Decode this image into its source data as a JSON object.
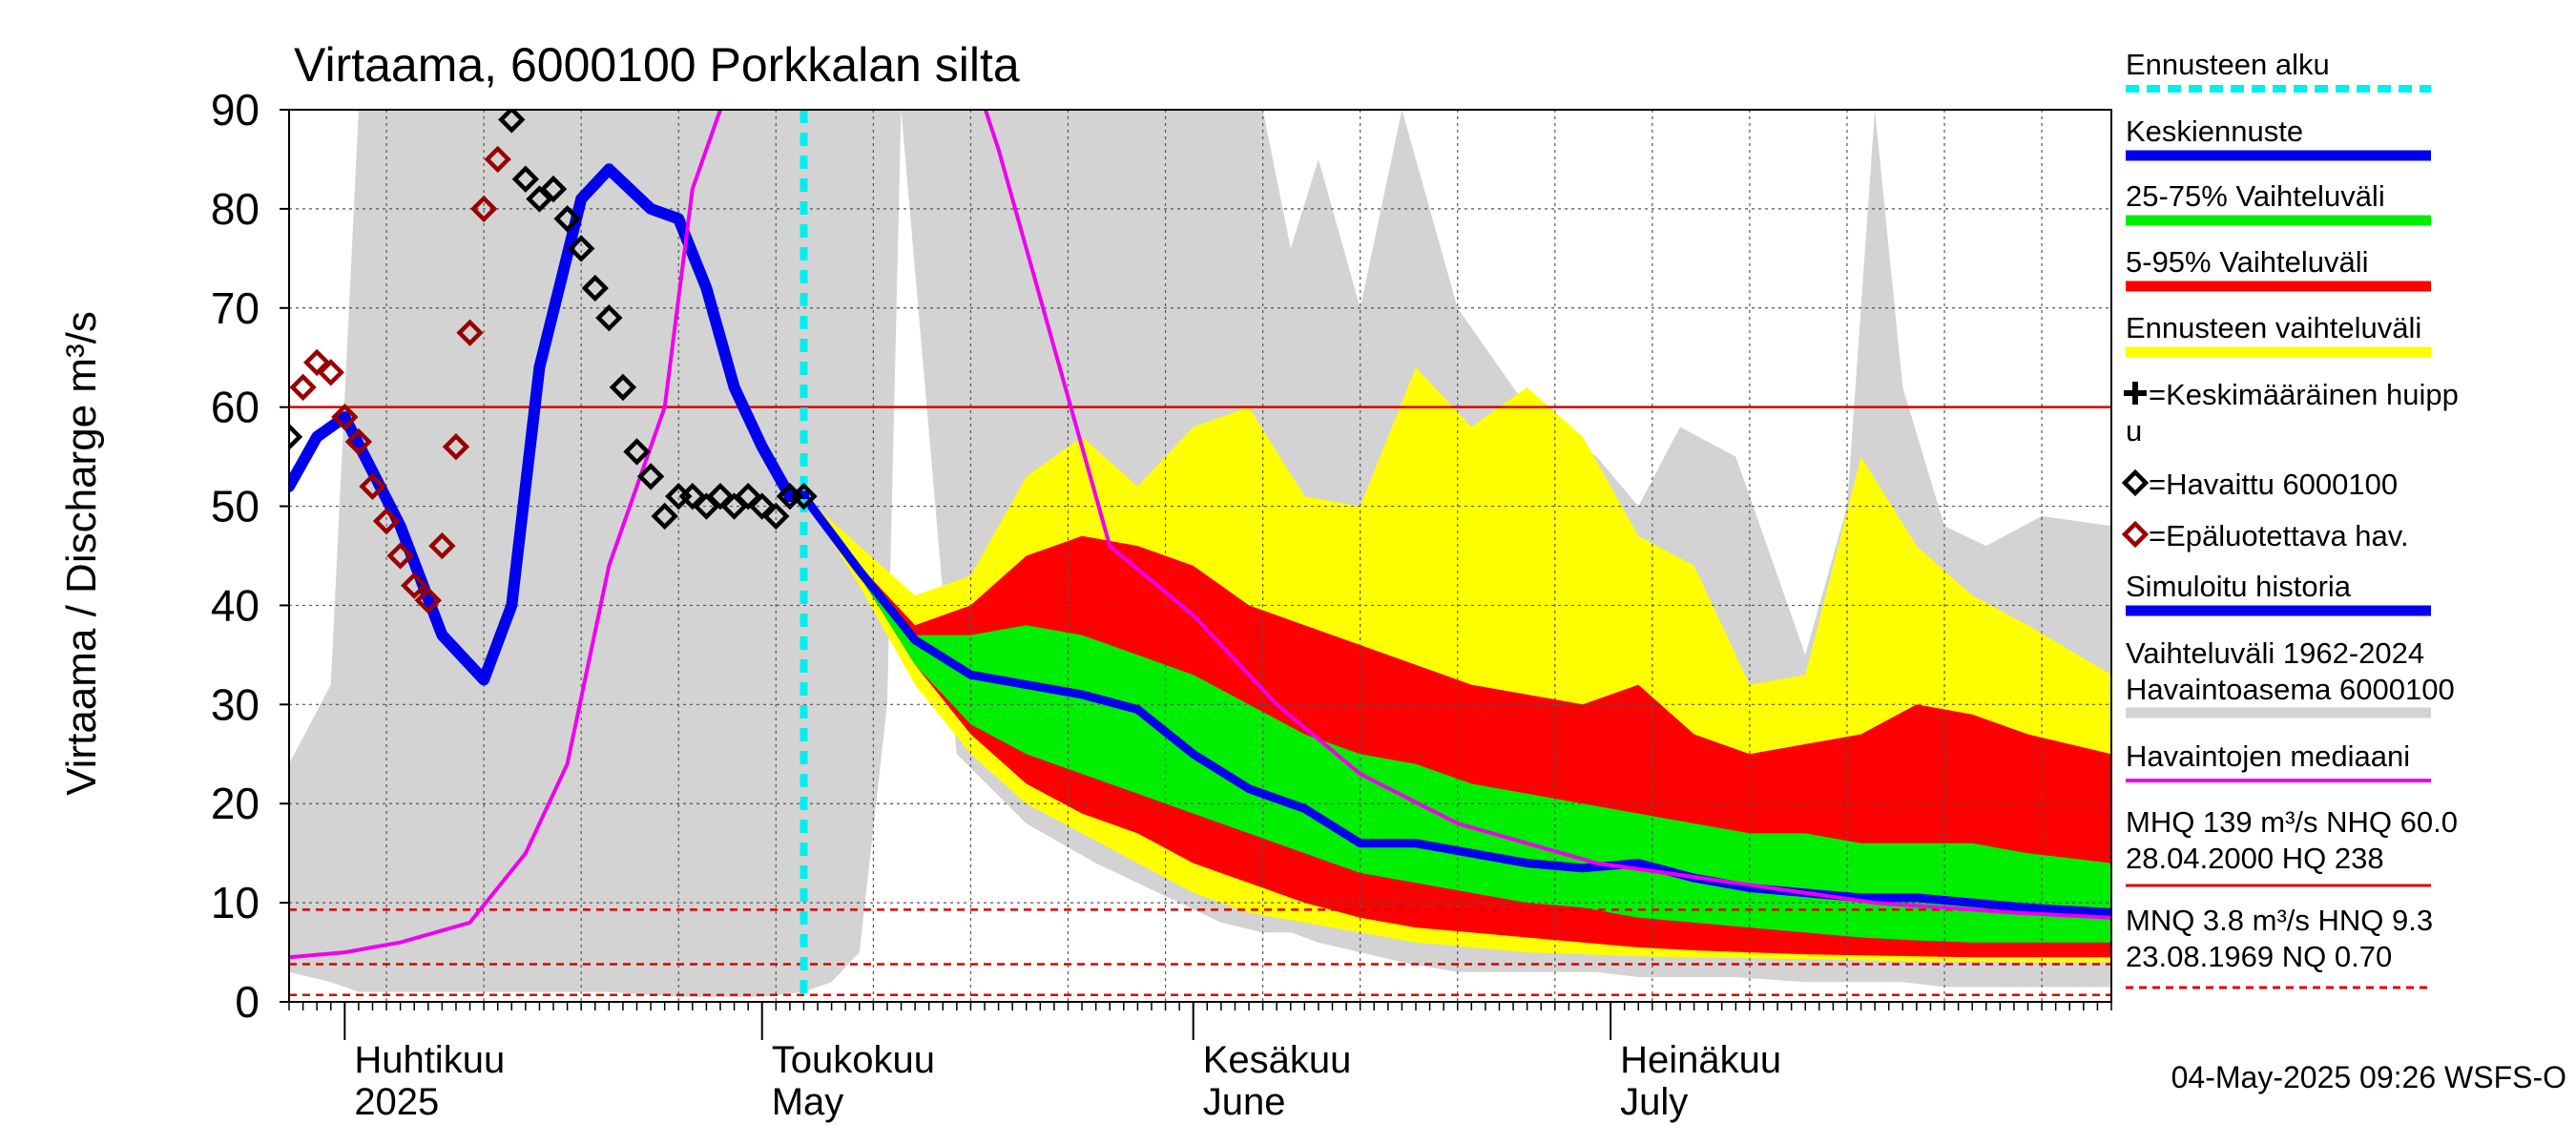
{
  "chart_data": {
    "type": "area",
    "title": "Virtaama, 6000100 Porkkalan silta",
    "ylabel": "Virtaama / Discharge   m³/s",
    "ylim": [
      0,
      90
    ],
    "yticks": [
      0,
      10,
      20,
      30,
      40,
      50,
      60,
      70,
      80,
      90
    ],
    "xlim": [
      "2025-03-28",
      "2025-08-06"
    ],
    "forecast_start": "2025-05-04",
    "months": [
      {
        "date": "2025-04-01",
        "fi": "Huhtikuu",
        "en": "2025"
      },
      {
        "date": "2025-05-01",
        "fi": "Toukokuu",
        "en": "May"
      },
      {
        "date": "2025-06-01",
        "fi": "Kesäkuu",
        "en": "June"
      },
      {
        "date": "2025-07-01",
        "fi": "Heinäkuu",
        "en": "July"
      }
    ],
    "reference_lines": [
      {
        "name": "NHQ",
        "value": 60.0,
        "color": "#e00000",
        "style": "solid"
      },
      {
        "name": "HNQ",
        "value": 9.3,
        "color": "#e00000",
        "style": "dashed"
      },
      {
        "name": "MNQ",
        "value": 3.8,
        "color": "#e00000",
        "style": "dashed"
      },
      {
        "name": "NQ",
        "value": 0.7,
        "color": "#e00000",
        "style": "dashed"
      }
    ],
    "history_range": {
      "x": [
        "2025-03-28",
        "2025-03-31",
        "2025-04-02",
        "2025-04-05",
        "2025-04-08",
        "2025-04-15",
        "2025-04-20",
        "2025-04-25",
        "2025-04-28",
        "2025-05-01",
        "2025-05-04",
        "2025-05-06",
        "2025-05-08",
        "2025-05-10",
        "2025-05-11",
        "2025-05-15",
        "2025-05-20",
        "2025-05-25",
        "2025-05-31",
        "2025-06-03",
        "2025-06-06",
        "2025-06-08",
        "2025-06-10",
        "2025-06-13",
        "2025-06-16",
        "2025-06-20",
        "2025-06-25",
        "2025-06-30",
        "2025-07-03",
        "2025-07-06",
        "2025-07-10",
        "2025-07-15",
        "2025-07-18",
        "2025-07-20",
        "2025-07-22",
        "2025-07-25",
        "2025-07-28",
        "2025-08-01",
        "2025-08-06"
      ],
      "upper": [
        24,
        32,
        90,
        90,
        90,
        90,
        90,
        90,
        90,
        90,
        90,
        90,
        90,
        90,
        90,
        90,
        90,
        90,
        90,
        90,
        90,
        76,
        85,
        70,
        90,
        70,
        60,
        55,
        50,
        58,
        55,
        35,
        50,
        90,
        62,
        48,
        46,
        49,
        48
      ],
      "lower": [
        3,
        2,
        1,
        1,
        1,
        1,
        1,
        0.5,
        0.5,
        0.5,
        1,
        2,
        5,
        30,
        90,
        25,
        18,
        14,
        10,
        8,
        7,
        7,
        6,
        5,
        4,
        3,
        3,
        3,
        2.5,
        2.5,
        2.5,
        2,
        2,
        2,
        2,
        1.5,
        1.5,
        1.5,
        1.5
      ]
    },
    "forecast_x": [
      "2025-05-04",
      "2025-05-08",
      "2025-05-12",
      "2025-05-16",
      "2025-05-20",
      "2025-05-24",
      "2025-05-28",
      "2025-06-01",
      "2025-06-05",
      "2025-06-09",
      "2025-06-13",
      "2025-06-17",
      "2025-06-21",
      "2025-06-25",
      "2025-06-29",
      "2025-07-03",
      "2025-07-07",
      "2025-07-11",
      "2025-07-15",
      "2025-07-19",
      "2025-07-23",
      "2025-07-27",
      "2025-07-31",
      "2025-08-06"
    ],
    "bands": [
      {
        "name": "Ennusteen vaihteluväli",
        "color": "#ffff00",
        "upper": [
          51,
          46,
          41,
          43,
          53,
          57,
          52,
          58,
          60,
          51,
          50,
          64,
          58,
          62,
          57,
          47,
          44,
          32,
          33,
          55,
          46,
          41,
          38,
          33
        ],
        "lower": [
          51,
          42,
          32,
          25,
          20,
          17,
          14,
          11,
          9,
          8,
          7,
          6,
          5.5,
          5,
          4.8,
          4.6,
          4.5,
          4.4,
          4.3,
          4.2,
          4.1,
          4.1,
          4.0,
          4.0
        ]
      },
      {
        "name": "5-95% Vaihteluväli",
        "color": "#ff0000",
        "upper": [
          51,
          44,
          38,
          40,
          45,
          47,
          46,
          44,
          40,
          38,
          36,
          34,
          32,
          31,
          30,
          32,
          27,
          25,
          26,
          27,
          30,
          29,
          27,
          25
        ],
        "lower": [
          51,
          43,
          34,
          27,
          22,
          19,
          17,
          14,
          12,
          10,
          8.5,
          7.5,
          7,
          6.5,
          6,
          5.5,
          5.2,
          5,
          4.8,
          4.7,
          4.6,
          4.5,
          4.5,
          4.5
        ]
      },
      {
        "name": "25-75% Vaihteluväli",
        "color": "#00ee00",
        "upper": [
          51,
          44,
          37,
          37,
          38,
          37,
          35,
          33,
          30,
          27,
          25,
          24,
          22,
          21,
          20,
          19,
          18,
          17,
          17,
          16,
          16,
          16,
          15,
          14
        ],
        "lower": [
          51,
          43,
          34,
          28,
          25,
          23,
          21,
          19,
          17,
          15,
          13,
          12,
          11,
          10,
          9.5,
          8.5,
          8,
          7.5,
          7,
          6.5,
          6.2,
          6,
          6,
          6
        ]
      }
    ],
    "series": [
      {
        "name": "Keskiennuste",
        "color": "#0000ee",
        "width": 9,
        "x": [
          "2025-05-04",
          "2025-05-08",
          "2025-05-12",
          "2025-05-16",
          "2025-05-20",
          "2025-05-24",
          "2025-05-28",
          "2025-06-01",
          "2025-06-05",
          "2025-06-09",
          "2025-06-13",
          "2025-06-17",
          "2025-06-21",
          "2025-06-25",
          "2025-06-29",
          "2025-07-03",
          "2025-07-07",
          "2025-07-11",
          "2025-07-15",
          "2025-07-19",
          "2025-07-23",
          "2025-07-27",
          "2025-07-31",
          "2025-08-06"
        ],
        "y": [
          51,
          43.5,
          36.5,
          33,
          32,
          31,
          29.5,
          25,
          21.5,
          19.5,
          16,
          16,
          15,
          14,
          13.5,
          14,
          12.5,
          11.5,
          11,
          10.5,
          10.5,
          10,
          9.5,
          9
        ]
      },
      {
        "name": "Simuloitu historia",
        "color": "#0000ee",
        "width": 12,
        "x": [
          "2025-03-28",
          "2025-03-30",
          "2025-04-01",
          "2025-04-05",
          "2025-04-08",
          "2025-04-11",
          "2025-04-13",
          "2025-04-15",
          "2025-04-18",
          "2025-04-20",
          "2025-04-23",
          "2025-04-25",
          "2025-04-27",
          "2025-04-29",
          "2025-05-01",
          "2025-05-03",
          "2025-05-04"
        ],
        "y": [
          52,
          57,
          59,
          48,
          37,
          32.5,
          40,
          64,
          81,
          84,
          80,
          79,
          72,
          62,
          56,
          51,
          51
        ]
      },
      {
        "name": "Havaintojen mediaani",
        "color": "#ee00ee",
        "width": 4,
        "x": [
          "2025-03-28",
          "2025-04-01",
          "2025-04-05",
          "2025-04-10",
          "2025-04-14",
          "2025-04-17",
          "2025-04-20",
          "2025-04-24",
          "2025-04-26",
          "2025-04-28",
          "2025-05-01",
          "2025-05-03",
          "2025-05-04",
          "2025-05-05",
          "2025-05-08",
          "2025-05-14",
          "2025-05-18",
          "2025-05-22",
          "2025-05-26",
          "2025-06-01",
          "2025-06-07",
          "2025-06-13",
          "2025-06-20",
          "2025-06-30",
          "2025-07-10",
          "2025-07-20",
          "2025-07-30",
          "2025-08-06"
        ],
        "y": [
          4.5,
          5,
          6,
          8,
          15,
          24,
          44,
          60,
          82,
          90,
          98,
          96,
          92,
          95,
          104,
          103,
          86,
          66,
          46,
          39,
          30,
          23,
          18,
          14,
          12,
          10,
          9,
          8.5
        ]
      }
    ],
    "observed": {
      "name": "=Havaittu 6000100",
      "color": "#000000",
      "x": [
        "2025-03-28",
        "2025-04-13",
        "2025-04-14",
        "2025-04-15",
        "2025-04-16",
        "2025-04-17",
        "2025-04-18",
        "2025-04-19",
        "2025-04-20",
        "2025-04-21",
        "2025-04-22",
        "2025-04-23",
        "2025-04-24",
        "2025-04-25",
        "2025-04-26",
        "2025-04-27",
        "2025-04-28",
        "2025-04-29",
        "2025-04-30",
        "2025-05-01",
        "2025-05-02",
        "2025-05-03",
        "2025-05-04"
      ],
      "y": [
        57,
        89,
        83,
        81,
        82,
        79,
        76,
        72,
        69,
        62,
        55.5,
        53,
        49,
        51,
        51,
        50,
        51,
        50,
        51,
        50,
        49,
        51,
        51
      ]
    },
    "unreliable": {
      "name": "=Epäluotettava hav.",
      "color": "#990000",
      "x": [
        "2025-03-29",
        "2025-03-30",
        "2025-03-31",
        "2025-04-01",
        "2025-04-02",
        "2025-04-03",
        "2025-04-04",
        "2025-04-05",
        "2025-04-06",
        "2025-04-07",
        "2025-04-08",
        "2025-04-09",
        "2025-04-10",
        "2025-04-11",
        "2025-04-12"
      ],
      "y": [
        62,
        64.5,
        63.5,
        59,
        56.5,
        52,
        48.5,
        45,
        42,
        40.5,
        46,
        56,
        67.5,
        80,
        85
      ]
    },
    "legend": [
      {
        "label": "Ennusteen alku",
        "color": "#00eeee",
        "kind": "dashed"
      },
      {
        "label": "Keskiennuste",
        "color": "#0000ee",
        "kind": "bar"
      },
      {
        "label": "25-75% Vaihteluväli",
        "color": "#00ee00",
        "kind": "bar"
      },
      {
        "label": "5-95% Vaihteluväli",
        "color": "#ff0000",
        "kind": "bar"
      },
      {
        "label": "Ennusteen vaihteluväli",
        "color": "#ffff00",
        "kind": "bar"
      },
      {
        "label": "=Keskimääräinen huipp",
        "label2": "u",
        "color": "#000000",
        "kind": "plus"
      },
      {
        "label": "=Havaittu 6000100",
        "color": "#000000",
        "kind": "diamond"
      },
      {
        "label": "=Epäluotettava hav.",
        "color": "#990000",
        "kind": "diamond"
      },
      {
        "label": "Simuloitu historia",
        "color": "#0000ee",
        "kind": "bar"
      },
      {
        "label": "Vaihteluväli 1962-2024",
        "label2": " Havaintoasema 6000100",
        "color": "#d3d3d3",
        "kind": "bar"
      },
      {
        "label": "Havaintojen mediaani",
        "color": "#ee00ee",
        "kind": "thin"
      }
    ],
    "stats": {
      "line1": "MHQ  139 m³/s NHQ 60.0",
      "line2": "28.04.2000 HQ  238",
      "line3": "MNQ  3.8 m³/s HNQ  9.3",
      "line4": "23.08.1969 NQ 0.70"
    },
    "footer": "04-May-2025 09:26 WSFS-O"
  },
  "colors": {
    "historic_range": "#d3d3d3",
    "forecast_start": "#00eeee",
    "reference": "#e00000"
  }
}
